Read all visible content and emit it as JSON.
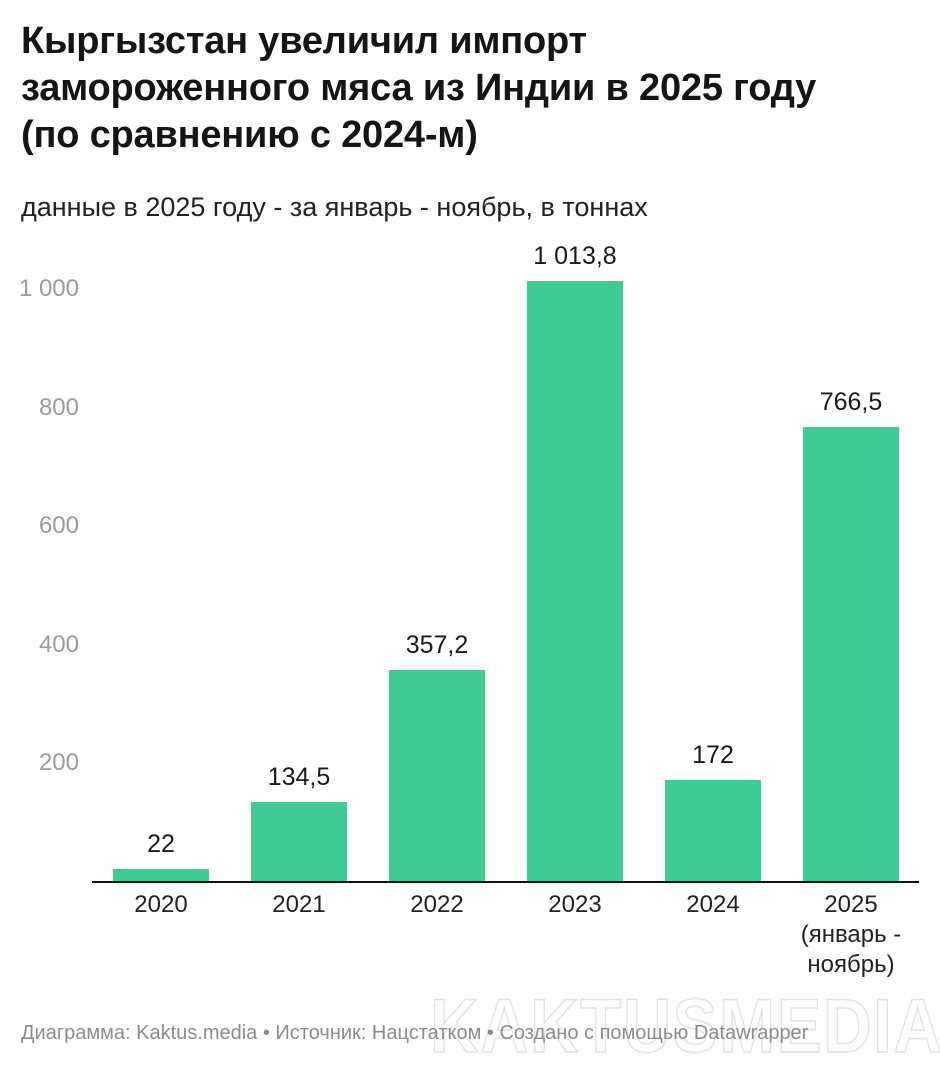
{
  "chart_data": {
    "type": "bar",
    "title": "Кыргызстан увеличил импорт замороженного мяса из Индии в 2025 году (по сравнению с 2024-м)",
    "subtitle": "данные в 2025 году - за январь - ноябрь, в тоннах",
    "categories": [
      "2020",
      "2021",
      "2022",
      "2023",
      "2024",
      "2025 (январь - ноябрь)"
    ],
    "x_tick_lines": [
      [
        "2020"
      ],
      [
        "2021"
      ],
      [
        "2022"
      ],
      [
        "2023"
      ],
      [
        "2024"
      ],
      [
        "2025",
        "(январь -",
        "ноябрь)"
      ]
    ],
    "values": [
      22,
      134.5,
      357.2,
      1013.8,
      172,
      766.5
    ],
    "value_labels": [
      "22",
      "134,5",
      "357,2",
      "1 013,8",
      "172",
      "766,5"
    ],
    "xlabel": "",
    "ylabel": "",
    "ylim": [
      0,
      1066
    ],
    "y_ticks": [
      {
        "value": 200,
        "label": "200"
      },
      {
        "value": 400,
        "label": "400"
      },
      {
        "value": 600,
        "label": "600"
      },
      {
        "value": 800,
        "label": "800"
      },
      {
        "value": 1000,
        "label": "1 000"
      }
    ],
    "grid": false,
    "legend": "none",
    "colors": {
      "bar": "#3fcb94",
      "axis_line": "#111111",
      "y_tick_label": "#9b9b9b",
      "x_tick_label": "#222222",
      "title": "#151515",
      "watermark_outline": "#e2e2e2"
    }
  },
  "footer": {
    "credit": "Диаграмма: Kaktus.media • Источник: Нацстатком • Создано с помощью Datawrapper"
  },
  "watermark": "KAKTUSMEDIA"
}
